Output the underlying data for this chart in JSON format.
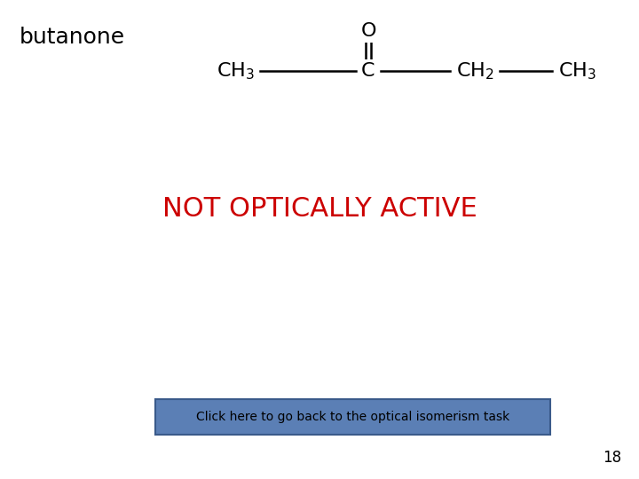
{
  "title": "butanone",
  "not_optically_active_text": "NOT OPTICALLY ACTIVE",
  "not_optically_active_color": "#cc0000",
  "button_text": "Click here to go back to the optical isomerism task",
  "button_bg_color": "#5b7fb5",
  "button_text_color": "#000000",
  "page_number": "18",
  "background_color": "#ffffff",
  "line_color": "#000000",
  "title_fontsize": 18,
  "molecule_fontsize": 16,
  "noa_fontsize": 22,
  "btn_fontsize": 10
}
